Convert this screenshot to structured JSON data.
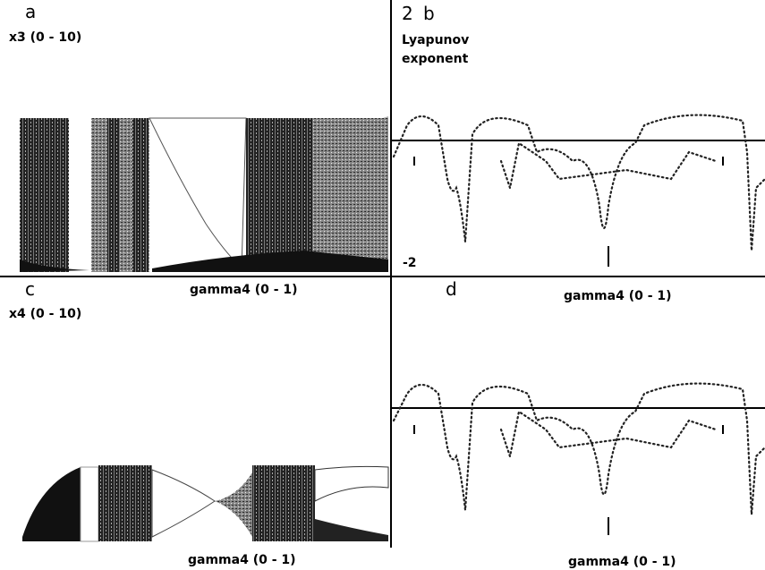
{
  "panels": [
    {
      "letter": "a",
      "y_label": "x3 (0 - 10)",
      "x_label": "gamma4 (0 - 1)"
    },
    {
      "number": "2",
      "letter": "b",
      "y_label": "Lyapunov",
      "y_label_2": "exponent",
      "y_min_label": "-2",
      "x_label": "gamma4 (0 - 1)"
    },
    {
      "letter": "c",
      "y_label": "x4 (0 - 10)",
      "x_label": "gamma4 (0 - 1)"
    },
    {
      "letter": "d",
      "x_label": "gamma4 (0 - 1)"
    }
  ]
}
